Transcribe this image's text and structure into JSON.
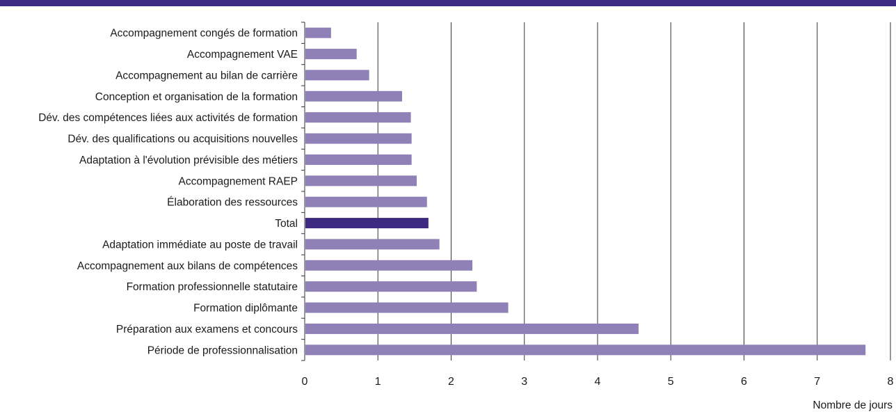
{
  "chart_data": {
    "type": "bar",
    "orientation": "horizontal",
    "title": "",
    "xlabel": "Nombre de jours",
    "ylabel": "",
    "xlim": [
      0,
      8
    ],
    "xticks": [
      "0",
      "1",
      "2",
      "3",
      "4",
      "5",
      "6",
      "7",
      "8"
    ],
    "grid": "vertical",
    "categories": [
      "Accompagnement congés de formation",
      "Accompagnement VAE",
      "Accompagnement au bilan de carrière",
      "Conception et organisation de la formation",
      "Dév. des compétences liées aux activités de formation",
      "Dév. des qualifications ou acquisitions nouvelles",
      "Adaptation à l'évolution prévisible des métiers",
      "Accompagnement RAEP",
      "Élaboration des ressources",
      "Total",
      "Adaptation immédiate au poste de travail",
      "Accompagnement aux bilans de compétences",
      "Formation professionnelle statutaire",
      "Formation diplômante",
      "Préparation aux examens et concours",
      "Période de professionnalisation"
    ],
    "values": [
      0.36,
      0.71,
      0.88,
      1.33,
      1.45,
      1.46,
      1.46,
      1.53,
      1.67,
      1.69,
      1.84,
      2.29,
      2.35,
      2.78,
      4.56,
      7.66
    ],
    "highlight": "Total",
    "colors": {
      "bar": "#8f80b8",
      "highlight": "#3b2a80",
      "grid": "#333333",
      "top_rule": "#3b2a80"
    }
  }
}
